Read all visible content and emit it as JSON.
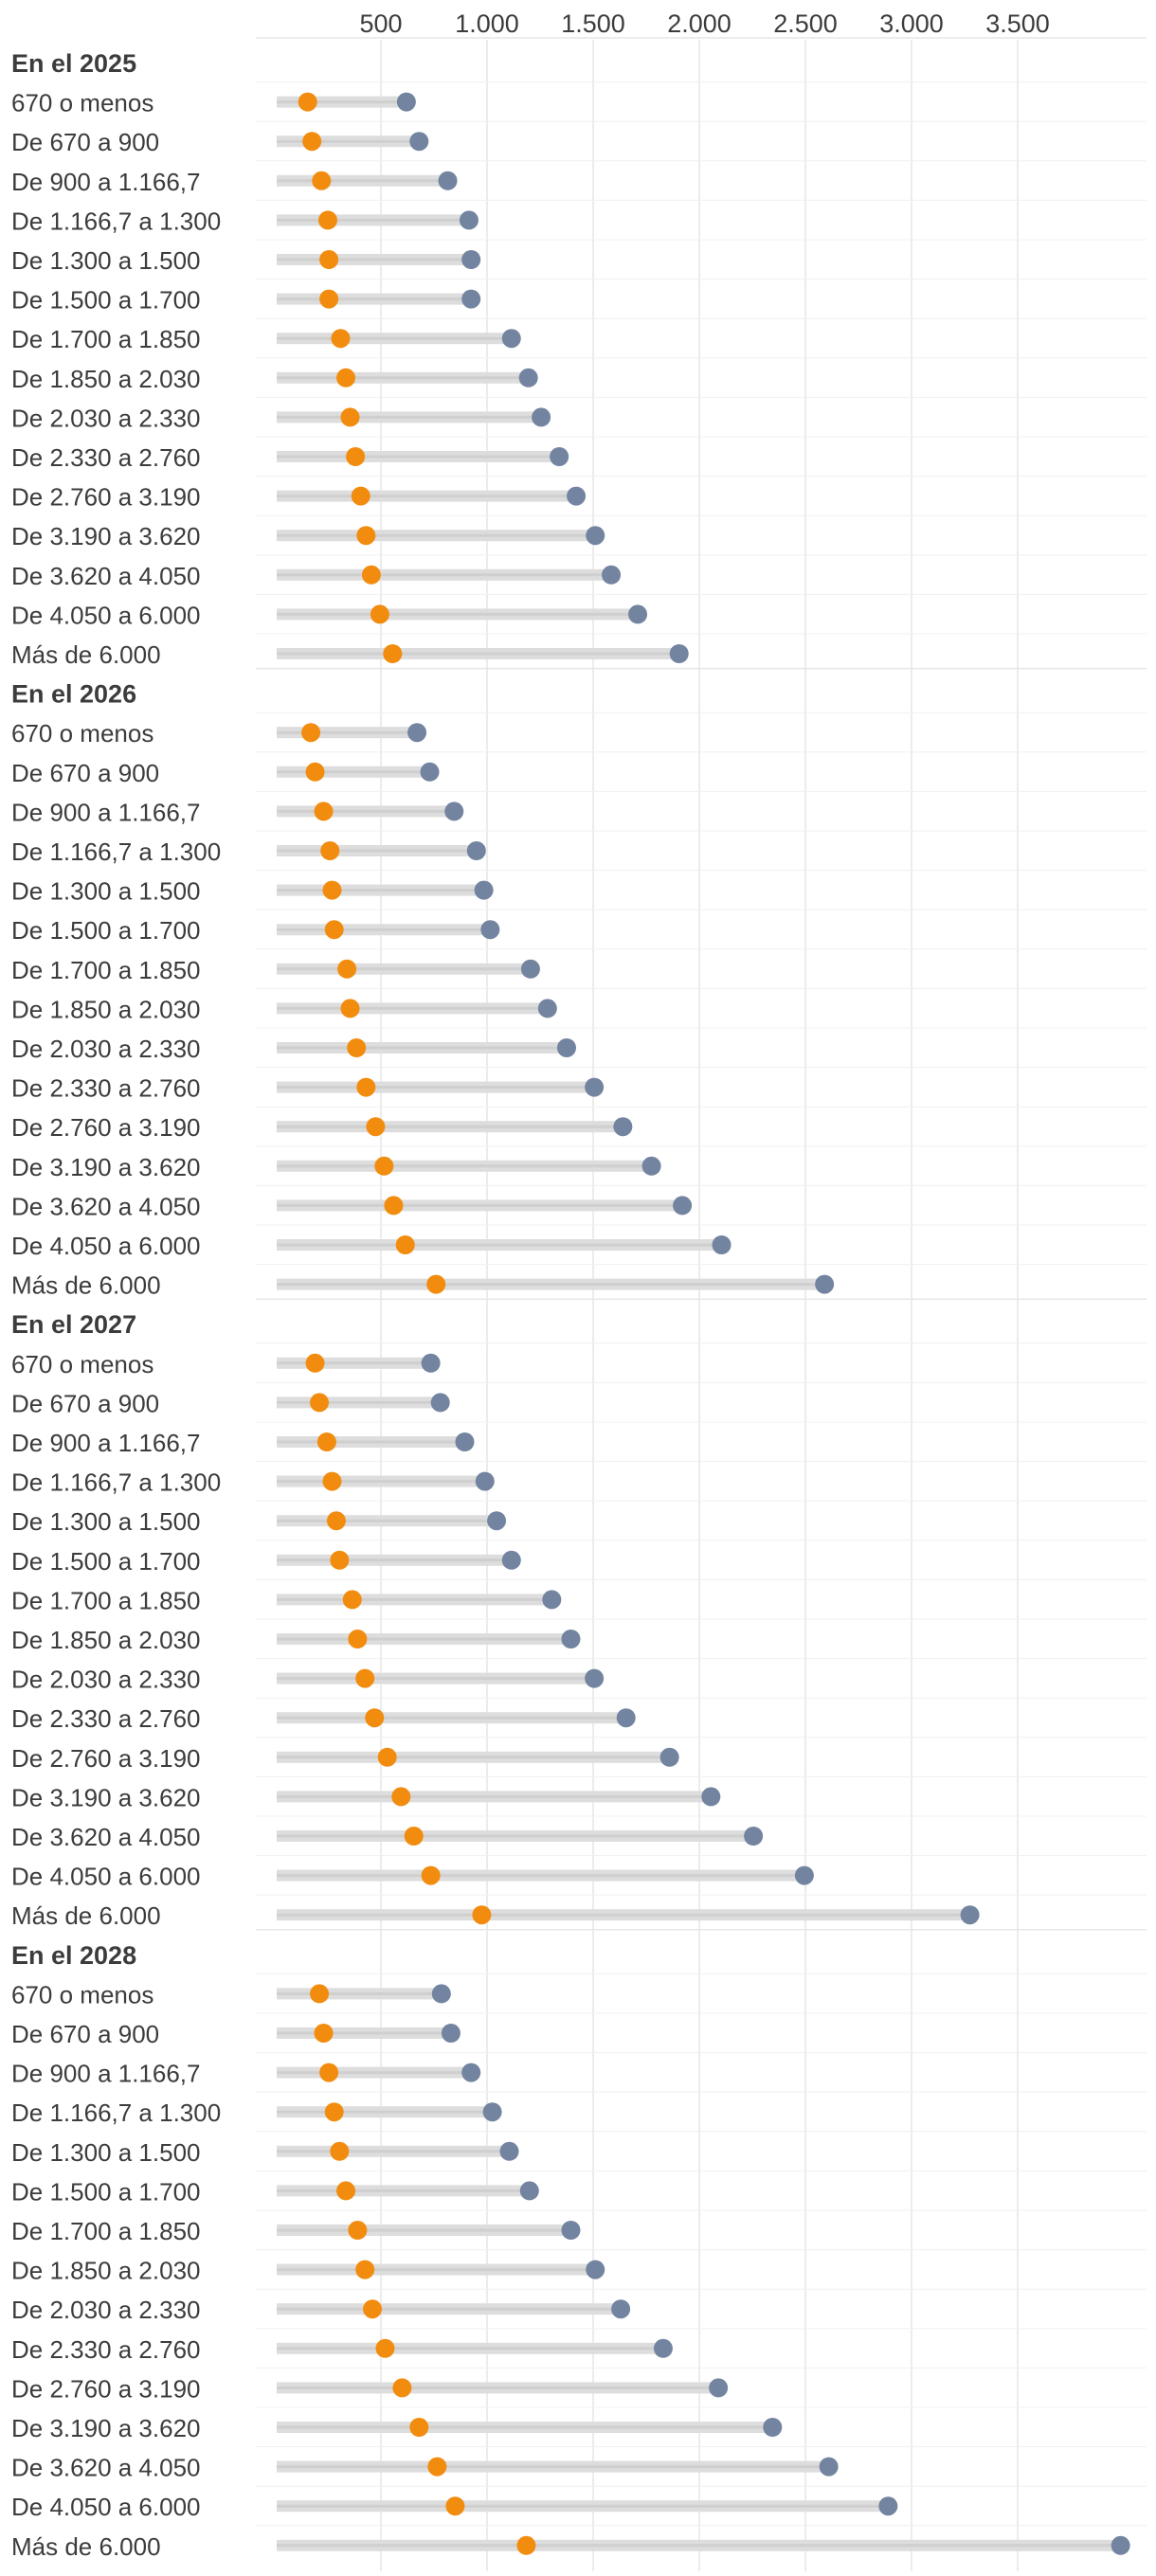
{
  "colors": {
    "accent_orange": "#F28C0F",
    "accent_slate": "#7384A0",
    "bar_gray": "#DDDDDD",
    "grid": "#E6E6E6",
    "text": "#3C3C3C"
  },
  "chart_data": {
    "type": "dumbbell",
    "xlim": [
      0,
      4000
    ],
    "xticks": [
      500,
      1000,
      1500,
      2000,
      2500,
      3000,
      3500
    ],
    "xtick_labels": [
      "500",
      "1.000",
      "1.500",
      "2.000",
      "2.500",
      "3.000",
      "3.500"
    ],
    "grid": true,
    "categories": [
      "670 o menos",
      "De 670 a 900",
      "De 900 a 1.166,7",
      "De 1.166,7 a 1.300",
      "De 1.300 a 1.500",
      "De 1.500 a 1.700",
      "De 1.700 a 1.850",
      "De 1.850 a 2.030",
      "De 2.030 a 2.330",
      "De 2.330 a 2.760",
      "De 2.760 a 3.190",
      "De 3.190 a 3.620",
      "De 3.620 a 4.050",
      "De 4.050 a 6.000",
      "Más de 6.000"
    ],
    "groups": [
      {
        "label": "En el 2025",
        "low": [
          155,
          175,
          220,
          250,
          255,
          255,
          310,
          335,
          355,
          380,
          405,
          430,
          455,
          495,
          555
        ],
        "high": [
          620,
          680,
          815,
          915,
          925,
          925,
          1115,
          1195,
          1255,
          1340,
          1420,
          1510,
          1585,
          1710,
          1905
        ]
      },
      {
        "label": "En el 2026",
        "low": [
          170,
          190,
          230,
          260,
          270,
          280,
          340,
          355,
          385,
          430,
          475,
          515,
          560,
          615,
          760
        ],
        "high": [
          670,
          730,
          845,
          950,
          985,
          1015,
          1205,
          1285,
          1375,
          1505,
          1640,
          1775,
          1920,
          2105,
          2590
        ]
      },
      {
        "label": "En el 2027",
        "low": [
          190,
          210,
          245,
          270,
          290,
          305,
          365,
          390,
          425,
          470,
          530,
          595,
          655,
          735,
          975
        ],
        "high": [
          735,
          780,
          895,
          990,
          1045,
          1115,
          1305,
          1395,
          1505,
          1655,
          1860,
          2055,
          2255,
          2495,
          3275
        ]
      },
      {
        "label": "En el 2028",
        "low": [
          210,
          230,
          255,
          280,
          305,
          335,
          390,
          425,
          460,
          520,
          600,
          680,
          765,
          850,
          1185
        ],
        "high": [
          785,
          830,
          925,
          1025,
          1105,
          1200,
          1395,
          1510,
          1630,
          1830,
          2090,
          2345,
          2610,
          2890,
          3985
        ]
      }
    ]
  }
}
